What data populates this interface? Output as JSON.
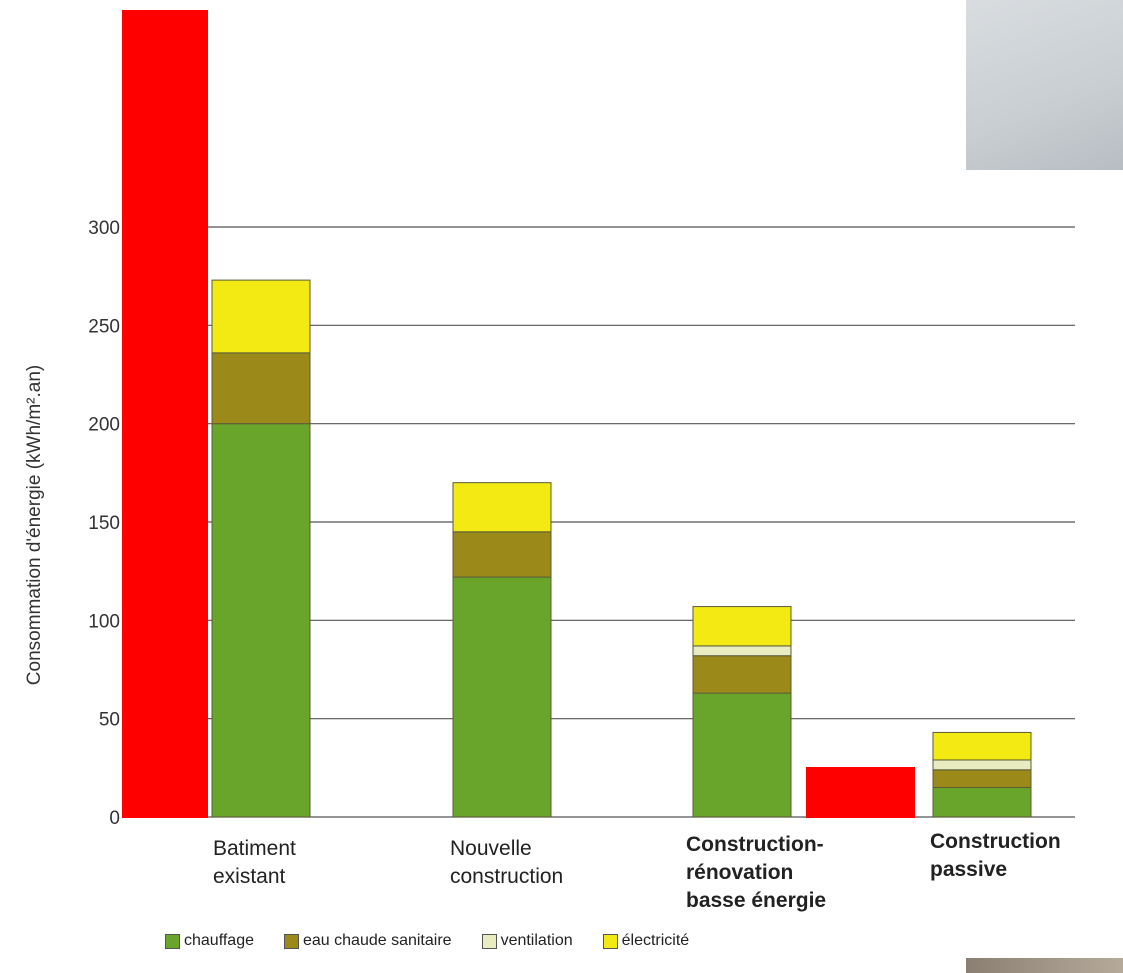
{
  "chart_data": {
    "type": "bar",
    "stacked": true,
    "ylabel": "Consommation d'énergie (kWh/m².an)",
    "ylim": [
      0,
      300
    ],
    "yticks": [
      "0",
      "50",
      "100",
      "150",
      "200",
      "250",
      "300"
    ],
    "grid": true,
    "legend_position": "bottom",
    "categories": [
      [
        "Batiment",
        "existant"
      ],
      [
        "Nouvelle",
        "construction"
      ],
      [
        "Construction-",
        "rénovation",
        "basse énergie"
      ],
      [
        "Construction",
        "passive"
      ]
    ],
    "series": [
      {
        "name": "chauffage",
        "color": "#6aa52b",
        "values": [
          200,
          122,
          63,
          15
        ]
      },
      {
        "name": "eau chaude sanitaire",
        "color": "#9b8a1a",
        "values": [
          36,
          23,
          19,
          9
        ]
      },
      {
        "name": "ventilation",
        "color": "#e8ecc0",
        "values": [
          0,
          0,
          5,
          5
        ]
      },
      {
        "name": "électricité",
        "color": "#f2ea12",
        "values": [
          37,
          25,
          20,
          14
        ]
      }
    ]
  }
}
